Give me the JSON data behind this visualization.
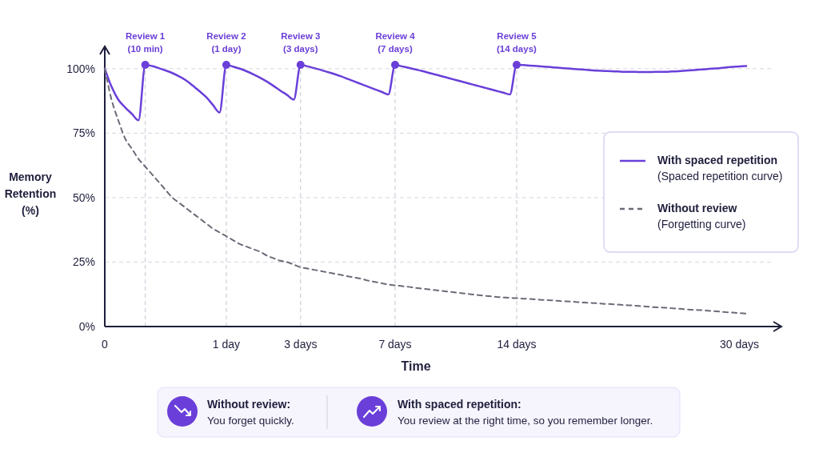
{
  "chart_data": {
    "type": "line",
    "xlabel": "Time",
    "ylabel": "Memory Retention\n(%)",
    "categories": [
      "0",
      null,
      null,
      null,
      null,
      null,
      null,
      null,
      null,
      null,
      null,
      null,
      null,
      null,
      null,
      null,
      null,
      null,
      "1 day",
      null,
      null,
      null,
      null,
      null,
      null,
      null,
      null,
      null,
      null,
      "3 days",
      null,
      null,
      null,
      null,
      null,
      null,
      null,
      null,
      null,
      null,
      null,
      null,
      null,
      "7 days",
      null,
      null,
      null,
      null,
      null,
      null,
      null,
      null,
      null,
      null,
      null,
      null,
      null,
      null,
      null,
      null,
      null,
      "14 days",
      null,
      null,
      null,
      null,
      null,
      null,
      null,
      null,
      null,
      null,
      null,
      null,
      null,
      null,
      null,
      null,
      null,
      null,
      null,
      null,
      null,
      null,
      null,
      null,
      null,
      null,
      null,
      null,
      null,
      null,
      null,
      null,
      "30 days",
      null
    ],
    "ylim": [
      0,
      108
    ],
    "yticks": [
      {
        "value": 0,
        "label": "0%"
      },
      {
        "value": 25,
        "label": "25%"
      },
      {
        "value": 50,
        "label": "50%"
      },
      {
        "value": 75,
        "label": "75%"
      },
      {
        "value": 100,
        "label": "100%"
      }
    ],
    "grid": true,
    "legend": "right",
    "series": [
      {
        "name": "With spaced repetition\n(Spaced repetition curve)",
        "color": "#6a3fd9",
        "line_style": "solid",
        "values": [
          100,
          93,
          88,
          85,
          82.5,
          80,
          101.5,
          101,
          100.2,
          99.3,
          98.3,
          97,
          95.5,
          93.5,
          91.3,
          89,
          86,
          83,
          101.5,
          100.8,
          100,
          99,
          97.8,
          96.5,
          95,
          93.3,
          91.5,
          89.8,
          88,
          101.5,
          100.9,
          100.2,
          99.5,
          98.7,
          97.9,
          97,
          96,
          95,
          94,
          93,
          92,
          91,
          90,
          101.5,
          100.9,
          100.3,
          99.7,
          99.1,
          98.4,
          97.7,
          97,
          96.3,
          95.6,
          94.9,
          94.2,
          93.5,
          92.8,
          92.1,
          91.4,
          90.7,
          90,
          101.5,
          101.4,
          101.2,
          101,
          100.8,
          100.6,
          100.4,
          100.2,
          100,
          99.8,
          99.6,
          99.4,
          99.2,
          99.1,
          99,
          98.9,
          98.8,
          98.8,
          98.7,
          98.7,
          98.7,
          98.8,
          98.8,
          98.9,
          99,
          99.2,
          99.4,
          99.6,
          99.8,
          100,
          100.2,
          100.5,
          100.7,
          100.9,
          101
        ]
      },
      {
        "name": "Without review\n(Forgetting curve)",
        "color": "#6b6b78",
        "line_style": "dashed",
        "values": [
          100,
          88,
          80,
          73,
          69,
          65,
          62,
          59,
          56,
          53,
          50,
          48,
          46,
          44,
          42,
          40,
          38,
          36.5,
          35,
          33.5,
          32,
          31,
          30,
          29,
          27.5,
          26.5,
          25.5,
          25,
          24,
          23,
          22.5,
          22,
          21.5,
          21,
          20.5,
          20,
          19.5,
          19,
          18.5,
          17.8,
          17.3,
          16.8,
          16.3,
          16,
          15.7,
          15.4,
          15,
          14.7,
          14.4,
          14.1,
          13.8,
          13.5,
          13.2,
          12.9,
          12.6,
          12.3,
          12,
          11.8,
          11.5,
          11.3,
          11.1,
          11,
          10.8,
          10.7,
          10.5,
          10.3,
          10.2,
          10,
          9.8,
          9.7,
          9.5,
          9.3,
          9.2,
          9,
          8.8,
          8.7,
          8.5,
          8.3,
          8.2,
          8,
          7.8,
          7.6,
          7.4,
          7.3,
          7.1,
          6.9,
          6.7,
          6.5,
          6.4,
          6.2,
          6,
          5.8,
          5.6,
          5.4,
          5.2,
          5
        ]
      },
      {
        "type": "scatter",
        "color": "#6a3fd9",
        "marker": "circle",
        "values": [
          null,
          null,
          null,
          null,
          null,
          null,
          101.5,
          null,
          null,
          null,
          null,
          null,
          null,
          null,
          null,
          null,
          null,
          null,
          101.5,
          null,
          null,
          null,
          null,
          null,
          null,
          null,
          null,
          null,
          null,
          101.5,
          null,
          null,
          null,
          null,
          null,
          null,
          null,
          null,
          null,
          null,
          null,
          null,
          null,
          101.5,
          null,
          null,
          null,
          null,
          null,
          null,
          null,
          null,
          null,
          null,
          null,
          null,
          null,
          null,
          null,
          null,
          null,
          101.5,
          null,
          null,
          null,
          null,
          null,
          null,
          null,
          null,
          null,
          null,
          null,
          null,
          null,
          null,
          null,
          null,
          null,
          null,
          null,
          null,
          null,
          null,
          null,
          null,
          null,
          null,
          null,
          null,
          null,
          null,
          null,
          null,
          null,
          null
        ]
      }
    ],
    "annotations": [
      "Review 1\n(10 min)",
      "Review 2\n(1 day)",
      "Review 3\n(3 days)",
      "Review 4\n(7 days)",
      "Review 5\n(14 days)",
      "Without review:",
      "You forget quickly.",
      "With spaced repetition:",
      "You review at the right time, so you remember longer."
    ]
  }
}
